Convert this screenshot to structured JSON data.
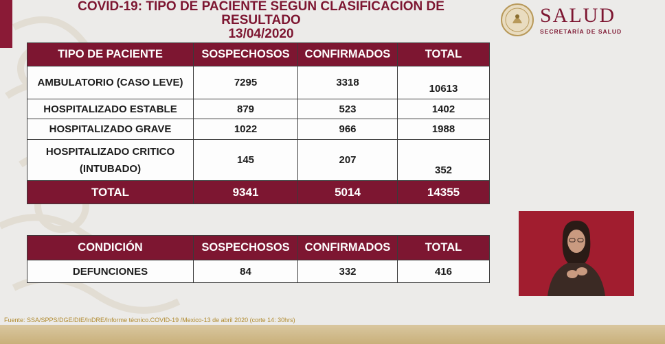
{
  "title": {
    "line1": "COVID-19: TIPO DE PACIENTE SEGÚN CLASIFICACIÓN DE",
    "line2": "RESULTADO",
    "date": "13/04/2020"
  },
  "logo": {
    "brand": "SALUD",
    "sub": "SECRETARÍA DE SALUD"
  },
  "patients_table": {
    "headers": [
      "TIPO DE PACIENTE",
      "SOSPECHOSOS",
      "CONFIRMADOS",
      "TOTAL"
    ],
    "rows": [
      {
        "type_line1": "AMBULATORIO (CASO LEVE)",
        "type_line2": "",
        "sospechosos": "7295",
        "confirmados": "3318",
        "total": "10613"
      },
      {
        "type_line1": "HOSPITALIZADO ESTABLE",
        "type_line2": "",
        "sospechosos": "879",
        "confirmados": "523",
        "total": "1402"
      },
      {
        "type_line1": "HOSPITALIZADO GRAVE",
        "type_line2": "",
        "sospechosos": "1022",
        "confirmados": "966",
        "total": "1988"
      },
      {
        "type_line1": "HOSPITALIZADO CRITICO",
        "type_line2": "(INTUBADO)",
        "sospechosos": "145",
        "confirmados": "207",
        "total": "352"
      }
    ],
    "total_row": {
      "label": "TOTAL",
      "sospechosos": "9341",
      "confirmados": "5014",
      "total": "14355"
    }
  },
  "deaths_table": {
    "headers": [
      "CONDICIÓN",
      "SOSPECHOSOS",
      "CONFIRMADOS",
      "TOTAL"
    ],
    "row": {
      "label": "DEFUNCIONES",
      "sospechosos": "84",
      "confirmados": "332",
      "total": "416"
    }
  },
  "source": "Fuente: SSA/SPPS/DGE/DIE/InDRE/Informe técnico.COVID-19 /Mexico-13 de abril 2020 (corte 14: 30hrs)",
  "colors": {
    "accent": "#7d1631",
    "gold": "#b08a2e",
    "interpreter_bg": "#a11d2f"
  },
  "icons": {
    "seal": "mexican-coat-of-arms-icon",
    "interpreter": "sign-language-interpreter-video"
  }
}
